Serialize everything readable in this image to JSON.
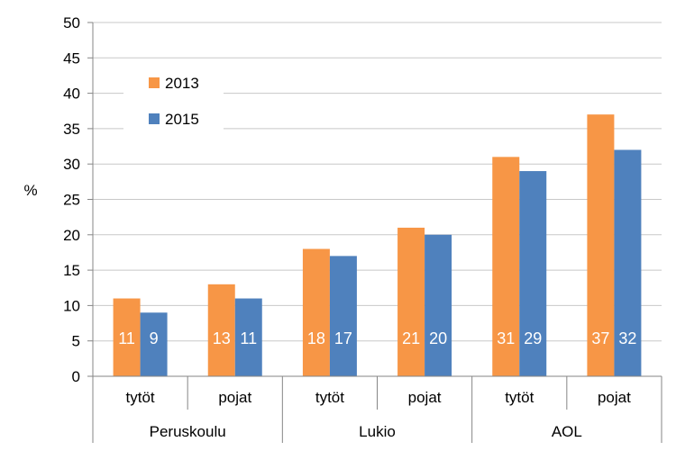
{
  "chart_data": {
    "type": "bar",
    "ylabel": "%",
    "ylim": [
      0,
      50
    ],
    "yticks": [
      0,
      5,
      10,
      15,
      20,
      25,
      30,
      35,
      40,
      45,
      50
    ],
    "grid": true,
    "legend_position": "top-left",
    "groups": [
      {
        "label": "Peruskoulu",
        "categories": [
          "tytöt",
          "pojat"
        ]
      },
      {
        "label": "Lukio",
        "categories": [
          "tytöt",
          "pojat"
        ]
      },
      {
        "label": "AOL",
        "categories": [
          "tytöt",
          "pojat"
        ]
      }
    ],
    "categories": [
      "tytöt",
      "pojat",
      "tytöt",
      "pojat",
      "tytöt",
      "pojat"
    ],
    "series": [
      {
        "name": "2013",
        "color": "#F79646",
        "values": [
          11,
          13,
          18,
          21,
          31,
          37
        ]
      },
      {
        "name": "2015",
        "color": "#4F81BD",
        "values": [
          9,
          11,
          17,
          20,
          29,
          32
        ]
      }
    ]
  }
}
